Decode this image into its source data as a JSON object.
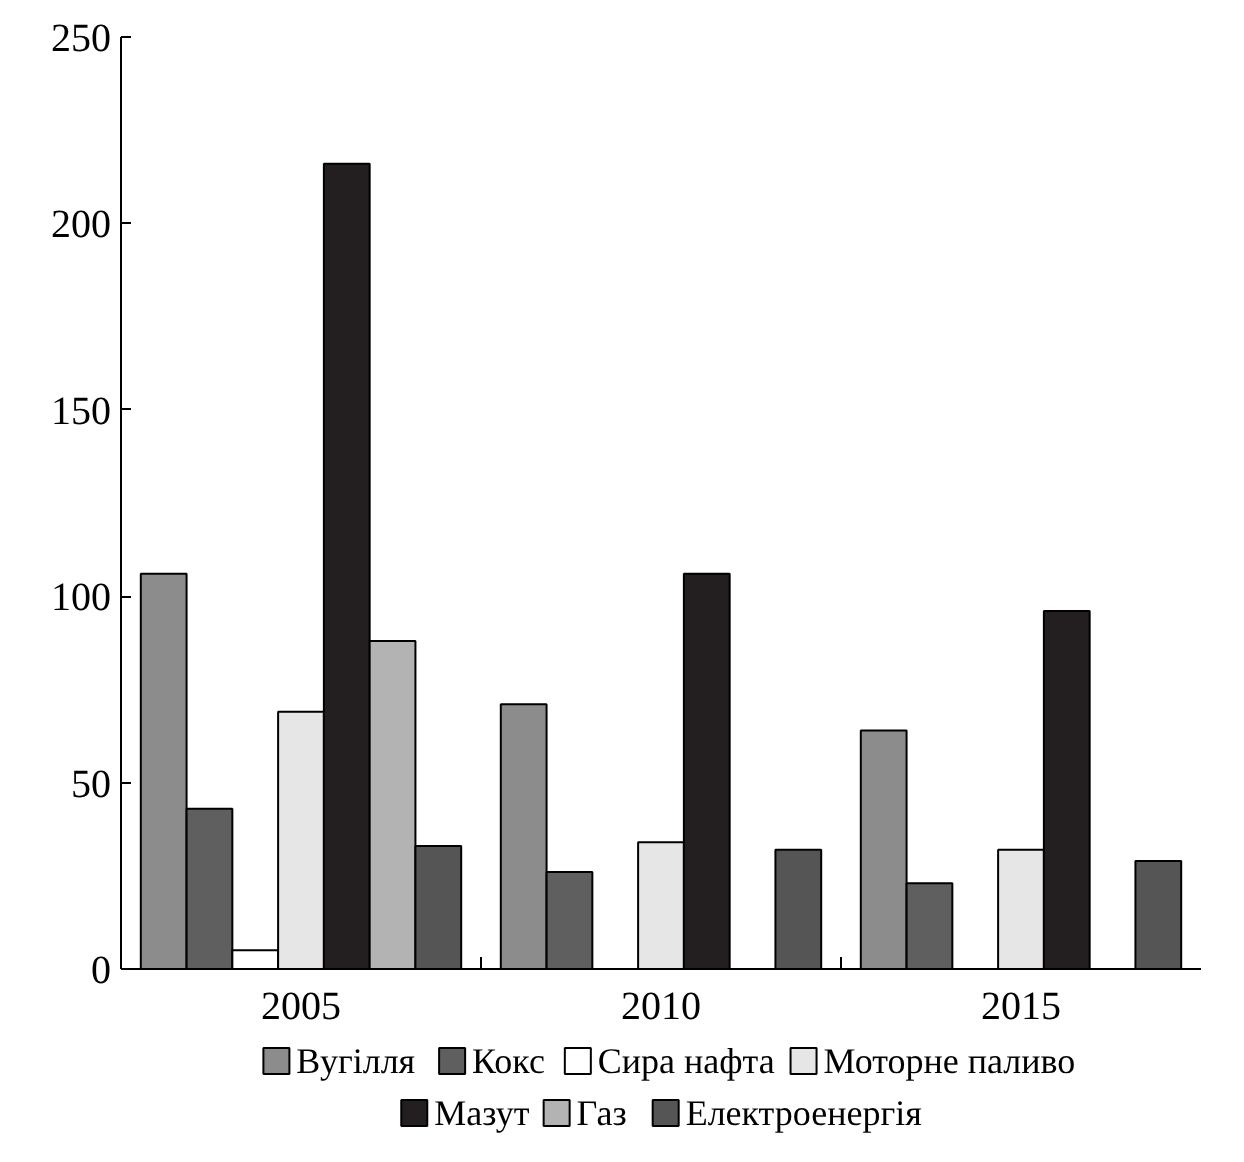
{
  "chart_data": {
    "type": "bar",
    "categories": [
      "2005",
      "2010",
      "2015"
    ],
    "ylim": [
      0,
      250
    ],
    "yticks": [
      0,
      50,
      100,
      150,
      200,
      250
    ],
    "grid": false,
    "legend": "bottom",
    "series": [
      {
        "name": "Вугілля",
        "color": "#8c8c8c",
        "values": [
          106,
          71,
          64
        ]
      },
      {
        "name": "Кокс",
        "color": "#5f5f5f",
        "values": [
          43,
          26,
          23
        ]
      },
      {
        "name": "Сира нафта",
        "color": "#ffffff",
        "values": [
          5,
          null,
          null
        ]
      },
      {
        "name": "Моторне паливо",
        "color": "#e6e6e6",
        "values": [
          69,
          34,
          32
        ]
      },
      {
        "name": "Мазут",
        "color": "#231f20",
        "values": [
          216,
          106,
          96
        ]
      },
      {
        "name": "Газ",
        "color": "#b3b3b3",
        "values": [
          88,
          null,
          null
        ]
      },
      {
        "name": "Електроенергія",
        "color": "#555555",
        "values": [
          33,
          32,
          29
        ]
      }
    ]
  }
}
